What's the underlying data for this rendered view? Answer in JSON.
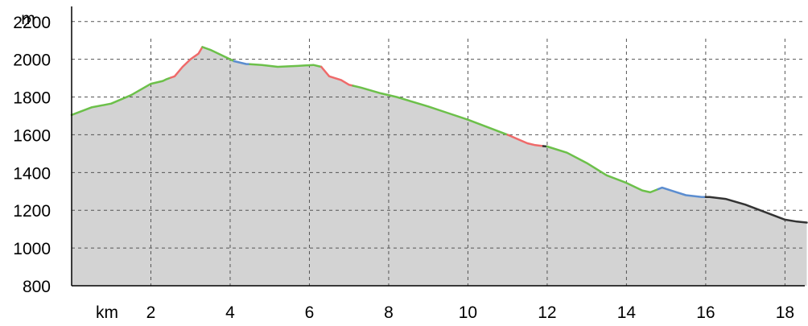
{
  "chart_data": {
    "type": "area",
    "ylabel": "m",
    "xlabel": "km",
    "xlim": [
      0,
      18.5
    ],
    "ylim": [
      800,
      2280
    ],
    "x_ticks": [
      2,
      4,
      6,
      8,
      10,
      12,
      14,
      16,
      18
    ],
    "y_ticks": [
      800,
      1000,
      1200,
      1400,
      1600,
      1800,
      2000,
      2200
    ],
    "grid": true,
    "fill_color": "#d3d3d3",
    "profile": [
      [
        0,
        1705
      ],
      [
        0.5,
        1745
      ],
      [
        1.0,
        1765
      ],
      [
        1.5,
        1810
      ],
      [
        2.0,
        1870
      ],
      [
        2.3,
        1885
      ],
      [
        2.4,
        1895
      ],
      [
        2.6,
        1910
      ],
      [
        2.8,
        1960
      ],
      [
        3.0,
        2000
      ],
      [
        3.2,
        2030
      ],
      [
        3.3,
        2065
      ],
      [
        3.5,
        2050
      ],
      [
        3.9,
        2010
      ],
      [
        4.1,
        1990
      ],
      [
        4.4,
        1975
      ],
      [
        4.8,
        1970
      ],
      [
        5.2,
        1960
      ],
      [
        5.7,
        1965
      ],
      [
        6.1,
        1970
      ],
      [
        6.3,
        1960
      ],
      [
        6.5,
        1910
      ],
      [
        6.8,
        1890
      ],
      [
        7.0,
        1865
      ],
      [
        7.3,
        1850
      ],
      [
        7.8,
        1820
      ],
      [
        8.2,
        1800
      ],
      [
        9.0,
        1750
      ],
      [
        9.5,
        1715
      ],
      [
        10.0,
        1680
      ],
      [
        10.5,
        1640
      ],
      [
        11.0,
        1600
      ],
      [
        11.5,
        1555
      ],
      [
        11.7,
        1545
      ],
      [
        11.9,
        1540
      ],
      [
        12.0,
        1538
      ],
      [
        12.5,
        1505
      ],
      [
        13.0,
        1450
      ],
      [
        13.5,
        1385
      ],
      [
        14.0,
        1345
      ],
      [
        14.4,
        1305
      ],
      [
        14.6,
        1295
      ],
      [
        14.9,
        1320
      ],
      [
        15.2,
        1300
      ],
      [
        15.5,
        1280
      ],
      [
        15.9,
        1270
      ],
      [
        16.1,
        1270
      ],
      [
        16.5,
        1260
      ],
      [
        17.0,
        1230
      ],
      [
        17.5,
        1190
      ],
      [
        18.0,
        1150
      ],
      [
        18.3,
        1140
      ],
      [
        18.55,
        1135
      ]
    ],
    "segments": [
      {
        "from": 0,
        "to": 2.5,
        "color": "#6cc04a"
      },
      {
        "from": 2.5,
        "to": 3.3,
        "color": "#ef6a6a"
      },
      {
        "from": 3.3,
        "to": 4.1,
        "color": "#6cc04a"
      },
      {
        "from": 4.1,
        "to": 4.5,
        "color": "#5b8dd0"
      },
      {
        "from": 4.5,
        "to": 6.3,
        "color": "#6cc04a"
      },
      {
        "from": 6.3,
        "to": 7.1,
        "color": "#ef6a6a"
      },
      {
        "from": 7.1,
        "to": 11.0,
        "color": "#6cc04a"
      },
      {
        "from": 11.0,
        "to": 11.9,
        "color": "#ef6a6a"
      },
      {
        "from": 11.9,
        "to": 12.0,
        "color": "#333333"
      },
      {
        "from": 12.0,
        "to": 14.8,
        "color": "#6cc04a"
      },
      {
        "from": 14.8,
        "to": 16.0,
        "color": "#5b8dd0"
      },
      {
        "from": 16.0,
        "to": 18.55,
        "color": "#333333"
      }
    ]
  }
}
